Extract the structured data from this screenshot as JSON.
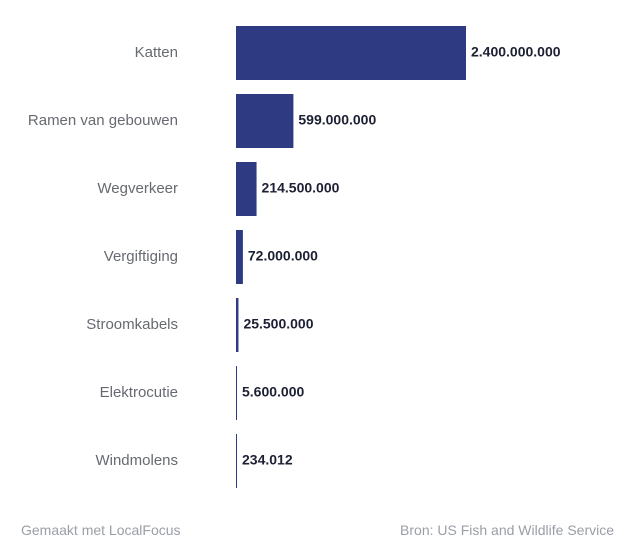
{
  "chart_data": {
    "type": "bar",
    "orientation": "horizontal",
    "categories": [
      "Katten",
      "Ramen van gebouwen",
      "Wegverkeer",
      "Vergiftiging",
      "Stroomkabels",
      "Elektrocutie",
      "Windmolens"
    ],
    "values": [
      2400000000,
      599000000,
      214500000,
      72000000,
      25500000,
      5600000,
      234012
    ],
    "value_labels": [
      "2.400.000.000",
      "599.000.000",
      "214.500.000",
      "72.000.000",
      "25.500.000",
      "5.600.000",
      "234.012"
    ],
    "xlim": [
      0,
      2400000000
    ],
    "bar_color": "#2e3a82",
    "title": "",
    "xlabel": "",
    "ylabel": ""
  },
  "footer": {
    "credit": "Gemaakt met LocalFocus",
    "source": "Bron:  US Fish and Wildlife Service"
  }
}
